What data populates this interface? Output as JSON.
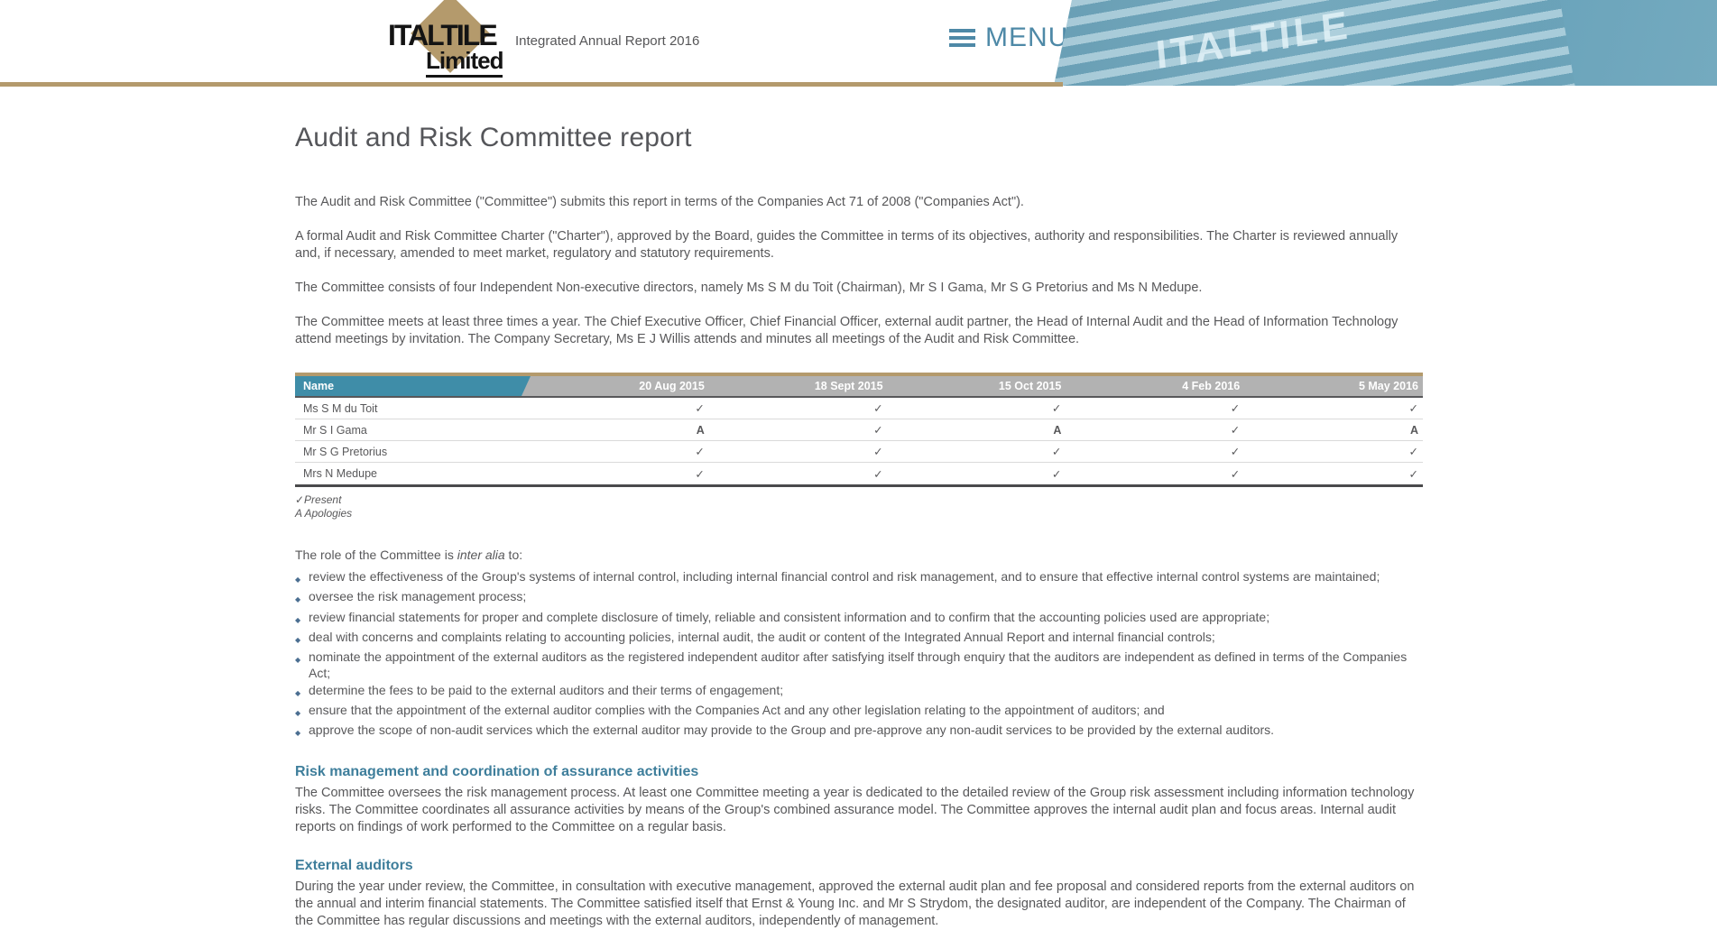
{
  "colors": {
    "gold": "#b49a6c",
    "menu_blue": "#4e89a7",
    "table_header_teal": "#3f8da8",
    "table_header_gray": "#b2b2b2",
    "section_heading_teal": "#3e7e9b",
    "body_text": "#58585a",
    "bullet_diamond": "#4a6e91",
    "hero_teal": "#6ba4bb"
  },
  "header": {
    "logo": {
      "line1": "ITALTILE",
      "line2": "Limited"
    },
    "report_title": "Integrated Annual Report 2016",
    "menu_label": "MENU",
    "hero_sign_text": "ITALTILE"
  },
  "page": {
    "title": "Audit and Risk Committee report",
    "intro_paragraphs": [
      "The Audit and Risk Committee (\"Committee\") submits this report in terms of the Companies Act 71 of 2008 (\"Companies Act\").",
      "A formal Audit and Risk Committee Charter (\"Charter\"), approved by the Board, guides the Committee in terms of its objectives, authority and responsibilities. The Charter is reviewed annually and, if necessary, amended to meet market, regulatory and statutory requirements.",
      "The Committee consists of four Independent Non-executive directors, namely Ms S M du Toit (Chairman), Mr S I Gama, Mr S G Pretorius and Ms N Medupe.",
      "The Committee meets at least three times a year. The Chief Executive Officer, Chief Financial Officer, external audit partner, the Head of Internal Audit and the Head of Information Technology attend meetings by invitation. The Company Secretary, Ms E J Willis attends and minutes all meetings of the Audit and Risk Committee."
    ]
  },
  "attendance_table": {
    "columns": [
      "Name",
      "20 Aug 2015",
      "18 Sept 2015",
      "15 Oct 2015",
      "4 Feb 2016",
      "5 May 2016"
    ],
    "rows": [
      {
        "name": "Ms S M du Toit",
        "marks": [
          "✓",
          "✓",
          "✓",
          "✓",
          "✓"
        ]
      },
      {
        "name": "Mr S I Gama",
        "marks": [
          "A",
          "✓",
          "A",
          "✓",
          "A"
        ]
      },
      {
        "name": "Mr S G Pretorius",
        "marks": [
          "✓",
          "✓",
          "✓",
          "✓",
          "✓"
        ]
      },
      {
        "name": "Mrs N Medupe",
        "marks": [
          "✓",
          "✓",
          "✓",
          "✓",
          "✓"
        ]
      }
    ],
    "legend": [
      "✓Present",
      "A Apologies"
    ]
  },
  "role_section": {
    "lead_prefix": "The role of the Committee is ",
    "lead_italic": "inter alia",
    "lead_suffix": " to:",
    "bullets": [
      "review the effectiveness of the Group's systems of internal control, including internal financial control and risk management, and to ensure that effective internal control systems are maintained;",
      "oversee the risk management process;",
      "review financial statements for proper and complete disclosure of timely, reliable and consistent information and to confirm that the accounting policies used are appropriate;",
      "deal with concerns and complaints relating to accounting policies, internal audit, the audit or content of the Integrated Annual Report and internal financial controls;",
      "nominate the appointment of the external auditors as the registered independent auditor after satisfying itself through enquiry that the auditors are independent as defined in terms of the Companies Act;",
      "determine the fees to be paid to the external auditors and their terms of engagement;",
      "ensure that the appointment of the external auditor complies with the Companies Act and any other legislation relating to the appointment of auditors; and",
      "approve the scope of non-audit services which the external auditor may provide to the Group and pre-approve any non-audit services to be provided by the external auditors."
    ]
  },
  "sections": [
    {
      "heading": "Risk management and coordination of assurance activities",
      "body": "The Committee oversees the risk management process. At least one Committee meeting a year is dedicated to the detailed review of the Group risk assessment including information technology risks. The Committee coordinates all assurance activities by means of the Group's combined assurance model. The Committee approves the internal audit plan and focus areas. Internal audit reports on findings of work performed to the Committee on a regular basis."
    },
    {
      "heading": "External auditors",
      "body": "During the year under review, the Committee, in consultation with executive management, approved the external audit plan and fee proposal and considered reports from the external auditors on the annual and interim financial statements. The Committee satisfied itself that Ernst & Young Inc. and Mr S Strydom, the designated auditor, are independent of the Company. The Chairman of the Committee has regular discussions and meetings with the external auditors, independently of management."
    }
  ]
}
